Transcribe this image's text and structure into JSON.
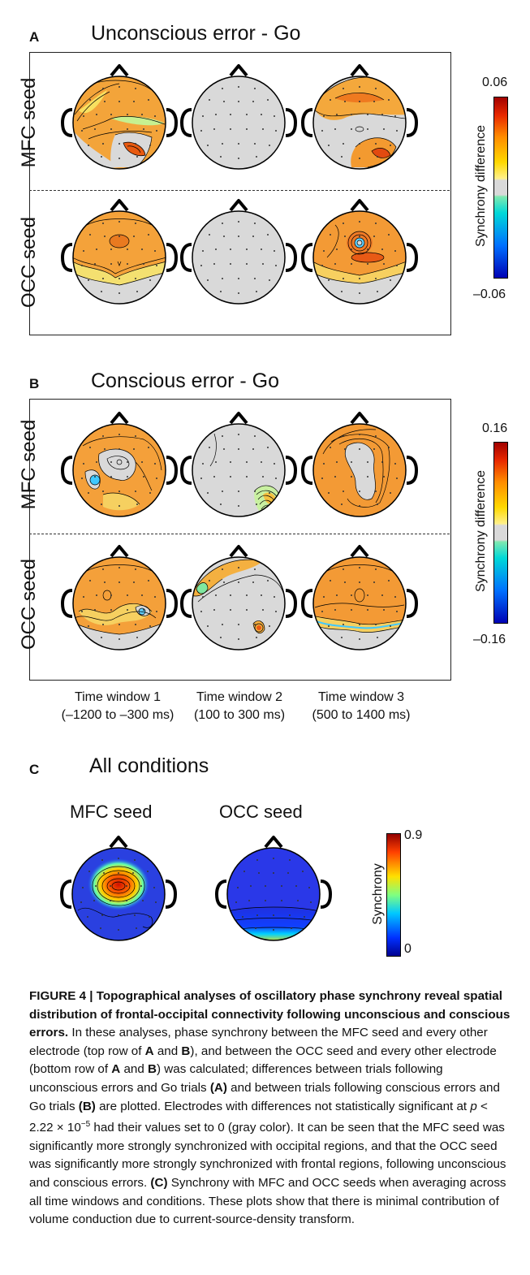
{
  "panels": {
    "A": {
      "letter": "A",
      "title": "Unconscious error - Go",
      "rows": [
        "MFC seed",
        "OCC seed"
      ],
      "colorbar": {
        "label": "Synchrony difference",
        "max": "0.06",
        "min": "–0.06"
      }
    },
    "B": {
      "letter": "B",
      "title": "Conscious error - Go",
      "rows": [
        "MFC seed",
        "OCC seed"
      ],
      "colorbar": {
        "label": "Synchrony difference",
        "max": "0.16",
        "min": "–0.16"
      }
    },
    "C": {
      "letter": "C",
      "title": "All conditions",
      "seeds": [
        "MFC seed",
        "OCC seed"
      ],
      "colorbar": {
        "label": "Synchrony",
        "max": "0.9",
        "min": "0"
      }
    }
  },
  "time_windows": [
    {
      "name": "Time window 1",
      "range": "(–1200 to –300 ms)"
    },
    {
      "name": "Time window 2",
      "range": "(100 to 300 ms)"
    },
    {
      "name": "Time window 3",
      "range": "(500 to 1400 ms)"
    }
  ],
  "colors": {
    "gray": "#d9d9d9",
    "diverging": [
      "#0000b4",
      "#0080ff",
      "#00d8d8",
      "#d9d9d9",
      "#ffe000",
      "#ff9a00",
      "#e83000",
      "#a00000"
    ],
    "jet": [
      "#00008f",
      "#0050ff",
      "#00d0ff",
      "#80ff80",
      "#ffd000",
      "#ff5000",
      "#900000"
    ]
  },
  "caption": {
    "title": "FIGURE 4 | Topographical analyses of oscillatory phase synchrony reveal spatial distribution of frontal-occipital connectivity following unconscious and conscious errors.",
    "body_parts": [
      " In these analyses, phase synchrony between the MFC seed and every other electrode (top row of ",
      "A",
      " and ",
      "B",
      "), and between the OCC seed and every other electrode (bottom row of ",
      "A",
      " and ",
      "B",
      ") was calculated; differences between trials following unconscious errors and Go trials ",
      "(A)",
      " and between trials following conscious errors and Go trials ",
      "(B)",
      " are plotted. Electrodes with differences not statistically significant at ",
      "p",
      " < 2.22 × 10",
      "−5",
      " had their values set to 0 (gray color). It can be seen that the MFC seed was significantly more strongly synchronized with occipital regions, and that the OCC seed was significantly more strongly synchronized with frontal regions, following unconscious and conscious errors. ",
      "(C)",
      " Synchrony with MFC and OCC seeds when averaging across all time windows and conditions. These plots show that there is minimal contribution of volume conduction due to current-source-density transform."
    ]
  }
}
